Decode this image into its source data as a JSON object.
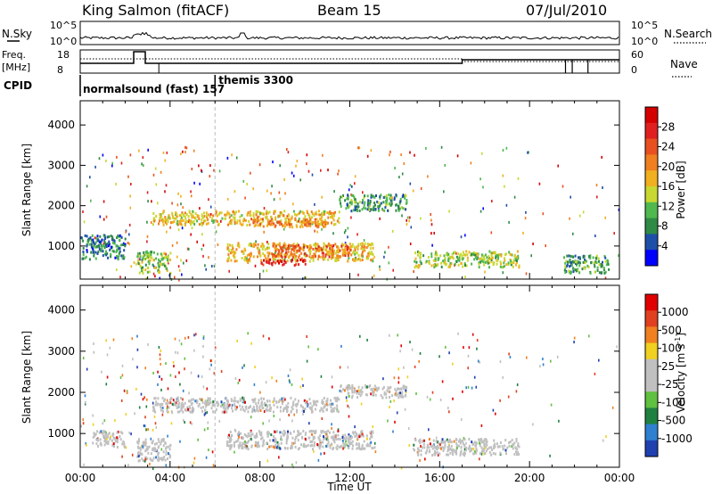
{
  "header": {
    "station": "King Salmon (fitACF)",
    "beam": "Beam 15",
    "date": "07/Jul/2010"
  },
  "top_panels": {
    "nsky_label": "N.Sky",
    "nsearch_label": "N.Search",
    "nsky_ticks": [
      "10^5",
      "10^0"
    ],
    "nsky_right_ticks": [
      "10^5",
      "10^0"
    ],
    "freq_label_1": "Freq.",
    "freq_label_2": "[MHz]",
    "freq_ticks": [
      "18",
      "8"
    ],
    "nave_label": "Nave",
    "nave_ticks": [
      "60",
      "0"
    ],
    "cpid_label": "CPID",
    "cpid_segments": [
      {
        "name": "normalsound (fast) 157",
        "start_hour": 0,
        "end_hour": 6
      },
      {
        "name": "themis 3300",
        "start_hour": 6,
        "end_hour": 24
      }
    ]
  },
  "colors": {
    "power_scale": [
      "#0000ff",
      "#1e4fa8",
      "#2f8a45",
      "#4fb84f",
      "#c8d830",
      "#f0b020",
      "#f07f20",
      "#e85020",
      "#e02020",
      "#d40000"
    ],
    "velocity_scale": [
      "#2040b0",
      "#3080d0",
      "#208040",
      "#60c040",
      "#c0c0c0",
      "#c0c0c0",
      "#f0d020",
      "#f08020",
      "#e04020",
      "#e00000"
    ],
    "ground_scatter": "#c0c0c0"
  },
  "chart_data": [
    {
      "type": "heatmap",
      "panel": "power",
      "ylabel": "Slant Range [km]",
      "ylim": [
        180,
        4600
      ],
      "yticks": [
        "1000",
        "2000",
        "3000",
        "4000"
      ],
      "xlim": [
        0,
        24
      ],
      "colorbar": {
        "label": "Power [dB]",
        "ticks": [
          "28",
          "24",
          "20",
          "16",
          "12",
          "8",
          "4"
        ],
        "range": [
          0,
          30
        ]
      },
      "regions": [
        {
          "x": [
            3.2,
            11.5
          ],
          "y": [
            1550,
            1900
          ],
          "level": 16
        },
        {
          "x": [
            7.5,
            11.0
          ],
          "y": [
            1500,
            1700
          ],
          "level": 20
        },
        {
          "x": [
            6.5,
            13.0
          ],
          "y": [
            650,
            1100
          ],
          "level": 16
        },
        {
          "x": [
            8.5,
            12.0
          ],
          "y": [
            750,
            1050
          ],
          "level": 22
        },
        {
          "x": [
            8.0,
            10.0
          ],
          "y": [
            550,
            700
          ],
          "level": 28
        },
        {
          "x": [
            2.5,
            4.0
          ],
          "y": [
            350,
            900
          ],
          "level": 12
        },
        {
          "x": [
            0.0,
            2.0
          ],
          "y": [
            700,
            1300
          ],
          "level": 6
        },
        {
          "x": [
            14.8,
            19.5
          ],
          "y": [
            500,
            900
          ],
          "level": 12
        },
        {
          "x": [
            11.5,
            14.5
          ],
          "y": [
            1900,
            2300
          ],
          "level": 8
        },
        {
          "x": [
            21.5,
            23.5
          ],
          "y": [
            350,
            800
          ],
          "level": 8
        }
      ]
    },
    {
      "type": "heatmap",
      "panel": "velocity",
      "ylabel": "Slant Range [km]",
      "ylim": [
        180,
        4600
      ],
      "yticks": [
        "1000",
        "2000",
        "3000",
        "4000"
      ],
      "xlim": [
        0,
        24
      ],
      "xlabel": "Time UT",
      "xticks": [
        "00:00",
        "04:00",
        "08:00",
        "12:00",
        "16:00",
        "20:00",
        "00:00"
      ],
      "colorbar": {
        "label": "Velocity [m s^-1]",
        "ticks": [
          "1000",
          "500",
          "100",
          "25",
          "-25",
          "-100",
          "-500",
          "-1000"
        ],
        "range": [
          -1000,
          1000
        ]
      },
      "regions": [
        {
          "x": [
            3.2,
            11.5
          ],
          "y": [
            1550,
            1900
          ],
          "level": 0
        },
        {
          "x": [
            6.5,
            13.0
          ],
          "y": [
            650,
            1100
          ],
          "level": 0
        },
        {
          "x": [
            2.5,
            4.0
          ],
          "y": [
            350,
            900
          ],
          "level": 0
        },
        {
          "x": [
            14.8,
            19.5
          ],
          "y": [
            500,
            900
          ],
          "level": 0
        },
        {
          "x": [
            0.5,
            2.0
          ],
          "y": [
            700,
            1100
          ],
          "level": 0
        },
        {
          "x": [
            11.5,
            14.5
          ],
          "y": [
            1900,
            2200
          ],
          "level": 0
        }
      ]
    }
  ]
}
